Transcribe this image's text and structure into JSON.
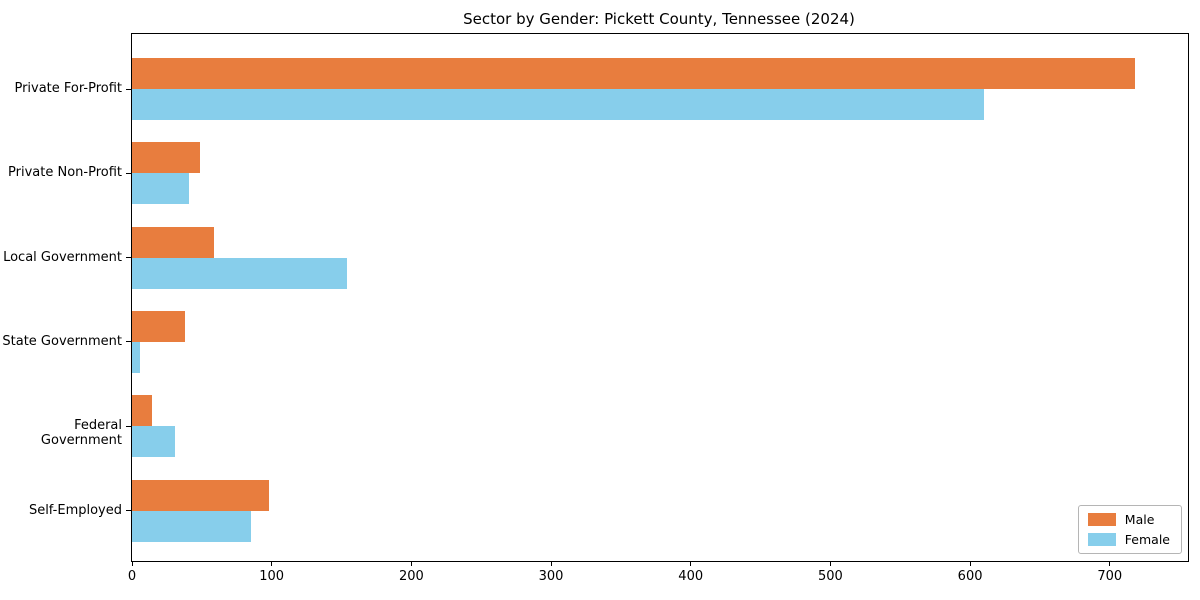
{
  "chart_data": {
    "type": "bar",
    "orientation": "horizontal",
    "title": "Sector by Gender: Pickett County, Tennessee (2024)",
    "categories": [
      "Private For-Profit",
      "Private Non-Profit",
      "Local Government",
      "State Government",
      "Federal Government",
      "Self-Employed"
    ],
    "series": [
      {
        "name": "Male",
        "color": "#e87d3e",
        "values": [
          718,
          49,
          59,
          38,
          14,
          98
        ]
      },
      {
        "name": "Female",
        "color": "#87ceeb",
        "values": [
          610,
          41,
          154,
          6,
          31,
          85
        ]
      }
    ],
    "xlabel": "",
    "ylabel": "",
    "xlim": [
      0,
      756
    ],
    "x_ticks": [
      "0",
      "100",
      "200",
      "300",
      "400",
      "500",
      "600",
      "700"
    ],
    "grid": false,
    "legend": {
      "position": "lower right",
      "entries": [
        "Male",
        "Female"
      ]
    },
    "colors": {
      "background": "#ffffff",
      "spine": "#000000",
      "male": "#e87d3e",
      "female": "#87ceeb"
    }
  }
}
